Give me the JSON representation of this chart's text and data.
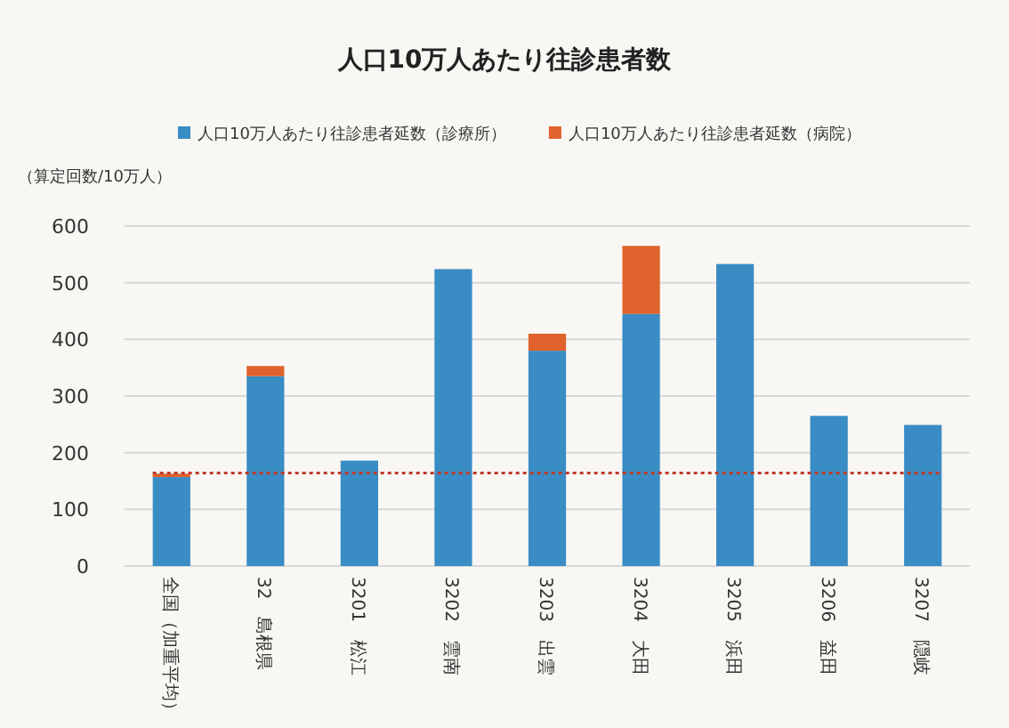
{
  "chart_data": {
    "type": "bar",
    "title": "人口10万人あたり往診患者数",
    "ylabel": "（算定回数/10万人）",
    "categories": [
      "全国（加重平均）",
      "32　島根県",
      "3201　松江",
      "3202　雲南",
      "3203　出雲",
      "3204　大田",
      "3205　浜田",
      "3206　益田",
      "3207　隠岐"
    ],
    "series": [
      {
        "name": "人口10万人あたり往診患者延数（診療所）",
        "color": "#3a8cc4",
        "values": [
          157,
          335,
          186,
          524,
          380,
          445,
          533,
          265,
          249
        ]
      },
      {
        "name": "人口10万人あたり往診患者延数（病院）",
        "color": "#e0622c",
        "values": [
          6,
          18,
          null,
          null,
          30,
          120,
          null,
          null,
          null
        ]
      }
    ],
    "stacked": true,
    "ylim": [
      0,
      600
    ],
    "yticks": [
      0,
      100,
      200,
      300,
      400,
      500,
      600
    ],
    "grid": "y",
    "legend": "top",
    "ref_lines": [
      {
        "axis": "y",
        "value": 164,
        "color": "#c0392b",
        "line_style": "dotted"
      }
    ]
  }
}
